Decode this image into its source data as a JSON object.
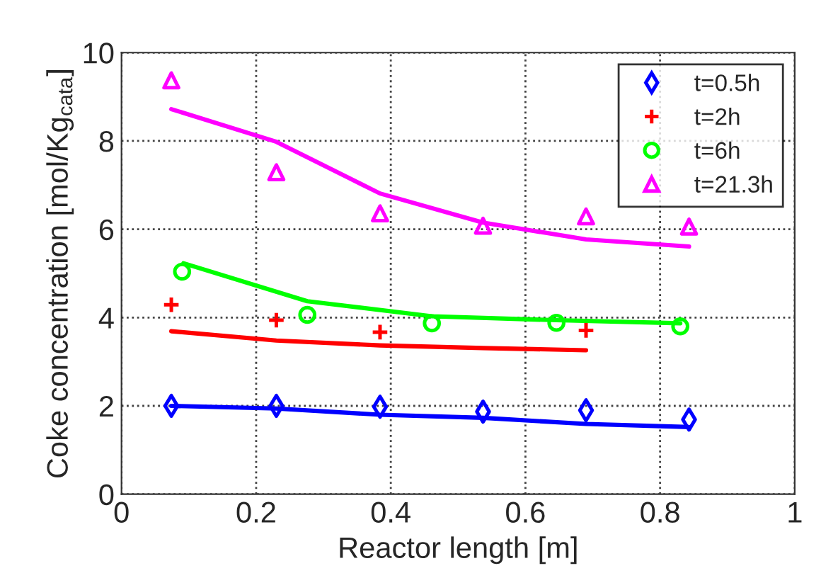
{
  "chart_data": {
    "type": "scatter",
    "xlabel": "Reactor length [m]",
    "ylabel": "Coke concentration [mol/Kg$_{cata}$]",
    "xlim": [
      0,
      1
    ],
    "xticks": [
      0,
      0.2,
      0.4,
      0.6,
      0.8,
      1
    ],
    "ylim": [
      0,
      10
    ],
    "yticks": [
      0,
      2,
      4,
      6,
      8,
      10
    ],
    "grid": true,
    "legend": "top right",
    "series": [
      {
        "type": "line",
        "color": "#0000ff",
        "marker": "none",
        "line_style": "solid",
        "x": [
          0.074,
          0.23,
          0.384,
          0.537,
          0.69,
          0.843
        ],
        "values": [
          2.0,
          1.94,
          1.8,
          1.73,
          1.59,
          1.52
        ]
      },
      {
        "type": "line",
        "color": "#ff0000",
        "marker": "none",
        "line_style": "solid",
        "x": [
          0.074,
          0.23,
          0.384,
          0.537,
          0.69
        ],
        "values": [
          3.69,
          3.48,
          3.37,
          3.31,
          3.26
        ]
      },
      {
        "type": "line",
        "color": "#00ff00",
        "marker": "none",
        "line_style": "solid",
        "x": [
          0.092,
          0.276,
          0.461,
          0.646,
          0.83
        ],
        "values": [
          5.23,
          4.37,
          4.03,
          3.94,
          3.87
        ]
      },
      {
        "type": "line",
        "color": "#ff00ff",
        "marker": "none",
        "line_style": "solid",
        "x": [
          0.074,
          0.23,
          0.384,
          0.537,
          0.69,
          0.843
        ],
        "values": [
          8.72,
          7.98,
          6.81,
          6.15,
          5.77,
          5.61
        ]
      },
      {
        "name": "t=0.5h",
        "color": "#0000ff",
        "marker": "diamond",
        "x": [
          0.074,
          0.23,
          0.384,
          0.537,
          0.69,
          0.843
        ],
        "values": [
          2.0,
          2.0,
          1.98,
          1.87,
          1.9,
          1.69
        ]
      },
      {
        "name": "t=2h",
        "color": "#ff0000",
        "marker": "cross",
        "x": [
          0.074,
          0.23,
          0.384,
          0.69
        ],
        "values": [
          4.29,
          3.94,
          3.67,
          3.71
        ]
      },
      {
        "name": "t=6h",
        "color": "#00ff00",
        "marker": "circle",
        "x": [
          0.09,
          0.276,
          0.461,
          0.646,
          0.83
        ],
        "values": [
          5.04,
          4.06,
          3.87,
          3.88,
          3.8
        ]
      },
      {
        "name": "t=21.3h",
        "color": "#ff00ff",
        "marker": "triangle",
        "x": [
          0.074,
          0.23,
          0.384,
          0.537,
          0.69,
          0.843
        ],
        "values": [
          9.37,
          7.29,
          6.36,
          6.08,
          6.29,
          6.06
        ]
      }
    ]
  }
}
